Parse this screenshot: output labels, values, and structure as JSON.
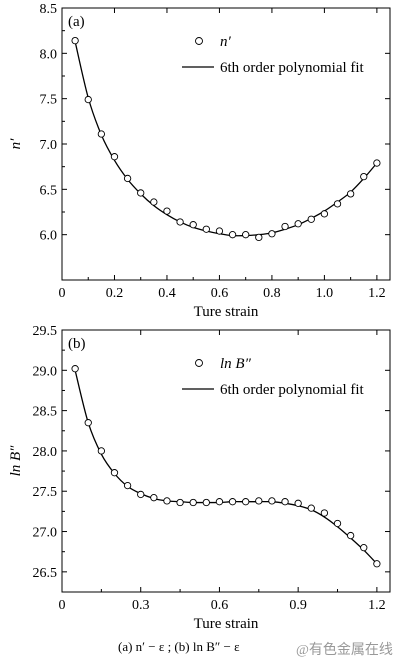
{
  "chart_data": [
    {
      "type": "scatter",
      "panel_label": "(a)",
      "xlabel": "Ture strain",
      "ylabel": "n′",
      "xlim": [
        0,
        1.25
      ],
      "ylim": [
        5.5,
        8.5
      ],
      "xticks": [
        0,
        0.2,
        0.4,
        0.6,
        0.8,
        1.0,
        1.2
      ],
      "xtick_labels": [
        "0",
        "0.2",
        "0.4",
        "0.6",
        "0.8",
        "1.0",
        "1.2"
      ],
      "yticks": [
        6.0,
        6.5,
        7.0,
        7.5,
        8.0,
        8.5
      ],
      "ytick_labels": [
        "6.0",
        "6.5",
        "7.0",
        "7.5",
        "8.0",
        "8.5"
      ],
      "legend_position": "top-right",
      "series": [
        {
          "name": "n′",
          "kind": "marker",
          "x": [
            0.05,
            0.1,
            0.15,
            0.2,
            0.25,
            0.3,
            0.35,
            0.4,
            0.45,
            0.5,
            0.55,
            0.6,
            0.65,
            0.7,
            0.75,
            0.8,
            0.85,
            0.9,
            0.95,
            1.0,
            1.05,
            1.1,
            1.15,
            1.2
          ],
          "y": [
            8.14,
            7.49,
            7.11,
            6.86,
            6.62,
            6.46,
            6.36,
            6.26,
            6.14,
            6.11,
            6.06,
            6.04,
            6.0,
            6.0,
            5.97,
            6.01,
            6.09,
            6.12,
            6.17,
            6.23,
            6.34,
            6.45,
            6.64,
            6.79
          ]
        },
        {
          "name": "6th order polynomial fit",
          "kind": "line",
          "x": [
            0.05,
            0.1,
            0.15,
            0.2,
            0.25,
            0.3,
            0.35,
            0.4,
            0.45,
            0.5,
            0.55,
            0.6,
            0.65,
            0.7,
            0.75,
            0.8,
            0.85,
            0.9,
            0.95,
            1.0,
            1.05,
            1.1,
            1.15,
            1.2
          ],
          "y": [
            8.13,
            7.51,
            7.1,
            6.82,
            6.61,
            6.45,
            6.32,
            6.22,
            6.14,
            6.08,
            6.04,
            6.01,
            5.99,
            5.99,
            6.0,
            6.02,
            6.06,
            6.11,
            6.18,
            6.26,
            6.36,
            6.47,
            6.62,
            6.79
          ]
        }
      ]
    },
    {
      "type": "scatter",
      "panel_label": "(b)",
      "xlabel": "Ture strain",
      "ylabel": "ln B″",
      "xlim": [
        0,
        1.25
      ],
      "ylim": [
        26.25,
        29.5
      ],
      "xticks": [
        0,
        0.3,
        0.6,
        0.9,
        1.2
      ],
      "xtick_labels": [
        "0",
        "0.3",
        "0.6",
        "0.9",
        "1.2"
      ],
      "yticks": [
        26.5,
        27.0,
        27.5,
        28.0,
        28.5,
        29.0,
        29.5
      ],
      "ytick_labels": [
        "26.5",
        "27.0",
        "27.5",
        "28.0",
        "28.5",
        "29.0",
        "29.5"
      ],
      "legend_position": "top-right",
      "series": [
        {
          "name": "ln B″",
          "kind": "marker",
          "x": [
            0.05,
            0.1,
            0.15,
            0.2,
            0.25,
            0.3,
            0.35,
            0.4,
            0.45,
            0.5,
            0.55,
            0.6,
            0.65,
            0.7,
            0.75,
            0.8,
            0.85,
            0.9,
            0.95,
            1.0,
            1.05,
            1.1,
            1.15,
            1.2
          ],
          "y": [
            29.02,
            28.35,
            28.0,
            27.73,
            27.57,
            27.46,
            27.42,
            27.38,
            27.36,
            27.36,
            27.36,
            27.37,
            27.37,
            27.37,
            27.38,
            27.38,
            27.37,
            27.35,
            27.29,
            27.23,
            27.1,
            26.95,
            26.8,
            26.6
          ]
        },
        {
          "name": "6th order polynomial fit",
          "kind": "line",
          "x": [
            0.05,
            0.1,
            0.15,
            0.2,
            0.25,
            0.3,
            0.35,
            0.4,
            0.45,
            0.5,
            0.55,
            0.6,
            0.65,
            0.7,
            0.75,
            0.8,
            0.85,
            0.9,
            0.95,
            1.0,
            1.05,
            1.1,
            1.15,
            1.2
          ],
          "y": [
            29.0,
            28.35,
            27.96,
            27.72,
            27.56,
            27.47,
            27.41,
            27.38,
            27.37,
            27.36,
            27.36,
            27.36,
            27.37,
            27.37,
            27.37,
            27.37,
            27.35,
            27.32,
            27.27,
            27.18,
            27.06,
            26.92,
            26.77,
            26.6
          ]
        }
      ]
    }
  ],
  "caption": "(a)   n′ − ε ; (b)   ln B″ − ε",
  "watermark": "@有色金属在线",
  "colors": {
    "ink": "#000000",
    "watermark": "#999999"
  }
}
